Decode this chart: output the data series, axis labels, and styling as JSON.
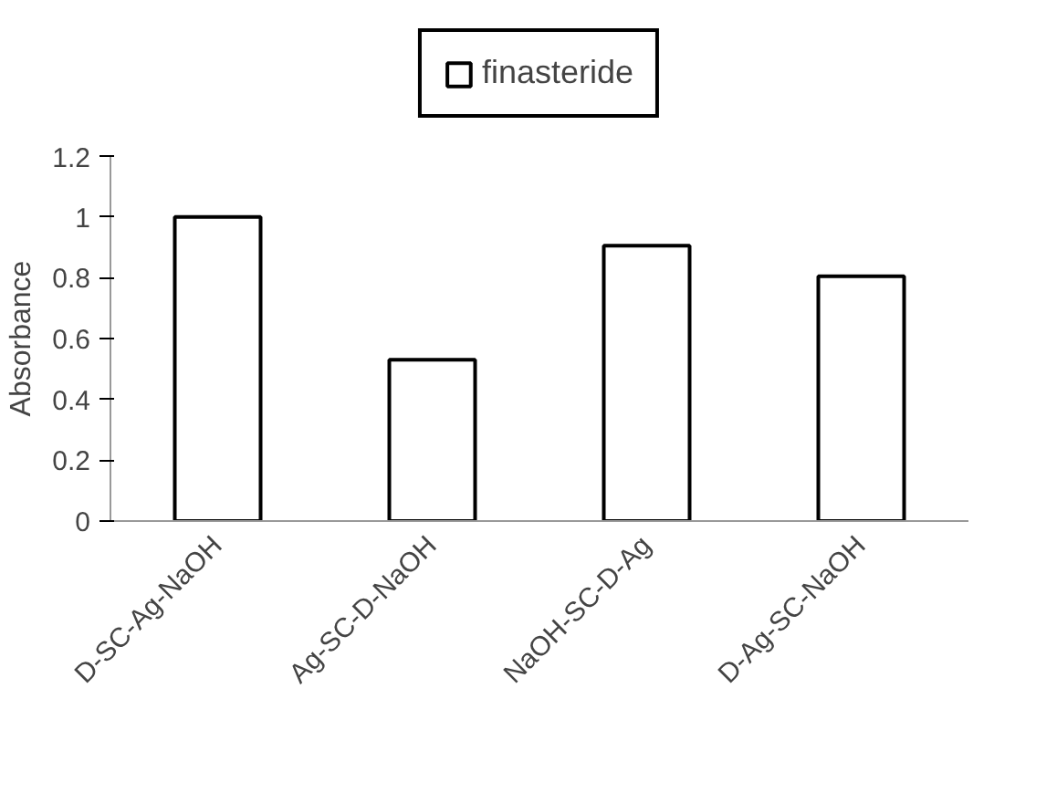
{
  "chart_data": {
    "type": "bar",
    "ylabel": "Absorbance",
    "categories": [
      "D-SC-Ag-NaOH",
      "Ag-SC-D-NaOH",
      "NaOH-SC-D-Ag",
      "D-Ag-SC-NaOH"
    ],
    "series": [
      {
        "name": "finasteride",
        "color": "#000000",
        "values": [
          1.0,
          0.53,
          0.905,
          0.805
        ]
      }
    ],
    "ylim": [
      0,
      1.2
    ],
    "yticks": [
      0,
      0.2,
      0.4,
      0.6,
      0.8,
      1,
      1.2
    ],
    "grid": false,
    "legend": "top"
  }
}
